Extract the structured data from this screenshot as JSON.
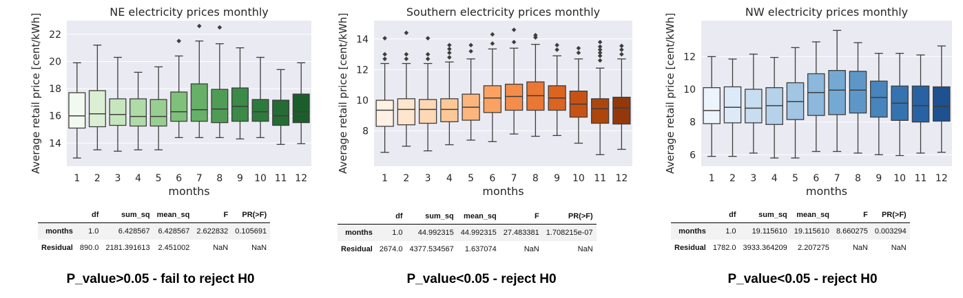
{
  "chart_data": [
    {
      "type": "box",
      "title": "NE electricity prices monthly",
      "xlabel": "months",
      "ylabel": "Average retail price [cent/kWh]",
      "categories": [
        "1",
        "2",
        "3",
        "4",
        "5",
        "6",
        "7",
        "8",
        "9",
        "10",
        "11",
        "12"
      ],
      "ylim": [
        12.3,
        23.0
      ],
      "yticks": [
        14,
        16,
        18,
        20,
        22
      ],
      "palette": "greens",
      "colors": [
        "#f2faef",
        "#dbf0d3",
        "#c6e7bd",
        "#b0dba6",
        "#98cf91",
        "#7fc17b",
        "#66b068",
        "#4f9c56",
        "#3b8a48",
        "#2d7a3d",
        "#246b34",
        "#1b5e2c"
      ],
      "boxes": [
        {
          "min": 12.9,
          "q1": 15.1,
          "median": 16.0,
          "q3": 17.7,
          "max": 19.9,
          "outliers": []
        },
        {
          "min": 13.5,
          "q1": 15.2,
          "median": 16.15,
          "q3": 17.85,
          "max": 21.2,
          "outliers": []
        },
        {
          "min": 13.4,
          "q1": 15.3,
          "median": 16.1,
          "q3": 17.25,
          "max": 20.3,
          "outliers": []
        },
        {
          "min": 13.5,
          "q1": 15.25,
          "median": 15.95,
          "q3": 17.25,
          "max": 19.2,
          "outliers": []
        },
        {
          "min": 13.5,
          "q1": 15.25,
          "median": 15.95,
          "q3": 17.2,
          "max": 19.6,
          "outliers": []
        },
        {
          "min": 14.4,
          "q1": 15.6,
          "median": 16.3,
          "q3": 17.75,
          "max": 20.4,
          "outliers": [
            21.5
          ]
        },
        {
          "min": 14.4,
          "q1": 15.6,
          "median": 16.45,
          "q3": 18.35,
          "max": 21.5,
          "outliers": [
            22.6
          ]
        },
        {
          "min": 14.4,
          "q1": 15.5,
          "median": 16.5,
          "q3": 17.95,
          "max": 21.3,
          "outliers": [
            22.5
          ]
        },
        {
          "min": 14.3,
          "q1": 15.6,
          "median": 16.7,
          "q3": 18.05,
          "max": 21.0,
          "outliers": []
        },
        {
          "min": 14.4,
          "q1": 15.6,
          "median": 16.3,
          "q3": 17.2,
          "max": 20.3,
          "outliers": []
        },
        {
          "min": 13.9,
          "q1": 15.3,
          "median": 16.0,
          "q3": 17.15,
          "max": 19.4,
          "outliers": []
        },
        {
          "min": 13.95,
          "q1": 15.5,
          "median": 16.3,
          "q3": 17.6,
          "max": 19.9,
          "outliers": []
        }
      ]
    },
    {
      "type": "box",
      "title": "Southern electricity prices monthly",
      "xlabel": "months",
      "ylabel": "Average retail price [cent/kWh]",
      "categories": [
        "1",
        "2",
        "3",
        "4",
        "5",
        "6",
        "7",
        "8",
        "9",
        "10",
        "11",
        "12"
      ],
      "ylim": [
        5.7,
        15.2
      ],
      "yticks": [
        8,
        10,
        12,
        14
      ],
      "palette": "oranges",
      "colors": [
        "#fff1e3",
        "#fde5ce",
        "#fdd8b5",
        "#fdc898",
        "#fcb67d",
        "#fba262",
        "#f48d49",
        "#ea7733",
        "#db6421",
        "#c65314",
        "#ad460d",
        "#93380a"
      ],
      "boxes": [
        {
          "min": 6.6,
          "q1": 8.3,
          "median": 9.35,
          "q3": 10.0,
          "max": 12.4,
          "outliers": [
            12.7,
            13.0,
            14.05
          ]
        },
        {
          "min": 7.0,
          "q1": 8.4,
          "median": 9.4,
          "q3": 10.1,
          "max": 12.4,
          "outliers": [
            12.7,
            13.0,
            14.4
          ]
        },
        {
          "min": 6.7,
          "q1": 8.5,
          "median": 9.4,
          "q3": 10.05,
          "max": 12.4,
          "outliers": [
            12.7,
            13.0,
            14.05
          ]
        },
        {
          "min": 7.1,
          "q1": 8.6,
          "median": 9.4,
          "q3": 10.1,
          "max": 12.5,
          "outliers": [
            12.8,
            13.1,
            13.35,
            13.6
          ]
        },
        {
          "min": 7.4,
          "q1": 8.7,
          "median": 9.55,
          "q3": 10.4,
          "max": 12.7,
          "outliers": [
            13.2,
            13.6
          ]
        },
        {
          "min": 7.3,
          "q1": 9.2,
          "median": 10.15,
          "q3": 10.95,
          "max": 13.35,
          "outliers": [
            13.7,
            14.3
          ]
        },
        {
          "min": 7.8,
          "q1": 9.35,
          "median": 10.25,
          "q3": 11.05,
          "max": 13.4,
          "outliers": [
            13.8,
            14.6
          ]
        },
        {
          "min": 7.65,
          "q1": 9.35,
          "median": 10.3,
          "q3": 11.2,
          "max": 13.65,
          "outliers": [
            14.1,
            14.25
          ]
        },
        {
          "min": 7.7,
          "q1": 9.35,
          "median": 10.15,
          "q3": 10.95,
          "max": 12.9,
          "outliers": [
            13.3,
            13.6
          ]
        },
        {
          "min": 7.2,
          "q1": 8.9,
          "median": 9.75,
          "q3": 10.6,
          "max": 12.7,
          "outliers": [
            13.1,
            13.4
          ]
        },
        {
          "min": 6.45,
          "q1": 8.5,
          "median": 9.45,
          "q3": 10.1,
          "max": 12.1,
          "outliers": [
            12.6,
            12.9,
            13.1,
            13.3,
            13.5,
            13.8
          ]
        },
        {
          "min": 6.8,
          "q1": 8.45,
          "median": 9.5,
          "q3": 10.2,
          "max": 12.7,
          "outliers": [
            13.0,
            13.3,
            13.55
          ]
        }
      ]
    },
    {
      "type": "box",
      "title": "NW electricity prices monthly",
      "xlabel": "months",
      "ylabel": "Average retail price [cent/kWh]",
      "categories": [
        "1",
        "2",
        "3",
        "4",
        "5",
        "6",
        "7",
        "8",
        "9",
        "10",
        "11",
        "12"
      ],
      "ylim": [
        5.3,
        14.2
      ],
      "yticks": [
        6,
        8,
        10,
        12
      ],
      "palette": "blues",
      "colors": [
        "#eef4fb",
        "#dce9f6",
        "#c9ddf0",
        "#b5d2ea",
        "#a1c5e3",
        "#8bb8dc",
        "#74a9d3",
        "#5d97c8",
        "#4885bd",
        "#3573b0",
        "#2862a2",
        "#1e5190"
      ],
      "boxes": [
        {
          "min": 5.9,
          "q1": 7.9,
          "median": 8.7,
          "q3": 10.1,
          "max": 12.0,
          "outliers": []
        },
        {
          "min": 5.9,
          "q1": 7.95,
          "median": 8.9,
          "q3": 10.15,
          "max": 11.85,
          "outliers": []
        },
        {
          "min": 6.1,
          "q1": 7.95,
          "median": 8.85,
          "q3": 10.0,
          "max": 12.15,
          "outliers": []
        },
        {
          "min": 5.8,
          "q1": 7.85,
          "median": 9.0,
          "q3": 10.1,
          "max": 11.95,
          "outliers": []
        },
        {
          "min": 5.8,
          "q1": 8.15,
          "median": 9.25,
          "q3": 10.4,
          "max": 12.55,
          "outliers": []
        },
        {
          "min": 6.2,
          "q1": 8.4,
          "median": 9.8,
          "q3": 10.95,
          "max": 12.9,
          "outliers": []
        },
        {
          "min": 6.2,
          "q1": 8.45,
          "median": 9.95,
          "q3": 11.15,
          "max": 13.6,
          "outliers": []
        },
        {
          "min": 6.1,
          "q1": 8.55,
          "median": 9.95,
          "q3": 11.1,
          "max": 12.85,
          "outliers": []
        },
        {
          "min": 6.0,
          "q1": 8.3,
          "median": 9.5,
          "q3": 10.5,
          "max": 12.2,
          "outliers": []
        },
        {
          "min": 5.95,
          "q1": 8.1,
          "median": 9.15,
          "q3": 10.2,
          "max": 12.2,
          "outliers": []
        },
        {
          "min": 6.1,
          "q1": 8.0,
          "median": 9.0,
          "q3": 10.2,
          "max": 12.1,
          "outliers": []
        },
        {
          "min": 6.15,
          "q1": 8.05,
          "median": 8.95,
          "q3": 10.15,
          "max": 12.65,
          "outliers": []
        }
      ]
    }
  ],
  "tables": [
    {
      "columns": [
        "",
        "df",
        "sum_sq",
        "mean_sq",
        "F",
        "PR(>F)"
      ],
      "rows": [
        [
          "months",
          "1.0",
          "6.428567",
          "6.428567",
          "2.622832",
          "0.105691"
        ],
        [
          "Residual",
          "890.0",
          "2181.391613",
          "2.451002",
          "NaN",
          "NaN"
        ]
      ]
    },
    {
      "columns": [
        "",
        "df",
        "sum_sq",
        "mean_sq",
        "F",
        "PR(>F)"
      ],
      "rows": [
        [
          "months",
          "1.0",
          "44.992315",
          "44.992315",
          "27.483381",
          "1.708215e-07"
        ],
        [
          "Residual",
          "2674.0",
          "4377.534567",
          "1.637074",
          "NaN",
          "NaN"
        ]
      ]
    },
    {
      "columns": [
        "",
        "df",
        "sum_sq",
        "mean_sq",
        "F",
        "PR(>F)"
      ],
      "rows": [
        [
          "months",
          "1.0",
          "19.115610",
          "19.115610",
          "8.660275",
          "0.003294"
        ],
        [
          "Residual",
          "1782.0",
          "3933.364209",
          "2.207275",
          "NaN",
          "NaN"
        ]
      ]
    }
  ],
  "conclusions": [
    "P_value>0.05 - fail to reject H0",
    "P_value<0.05 - reject H0",
    "P_value<0.05 - reject H0"
  ],
  "style": {
    "plot_background": "#eaeaf2",
    "grid_color": "#ffffff",
    "line_color": "#3d3d3d"
  }
}
